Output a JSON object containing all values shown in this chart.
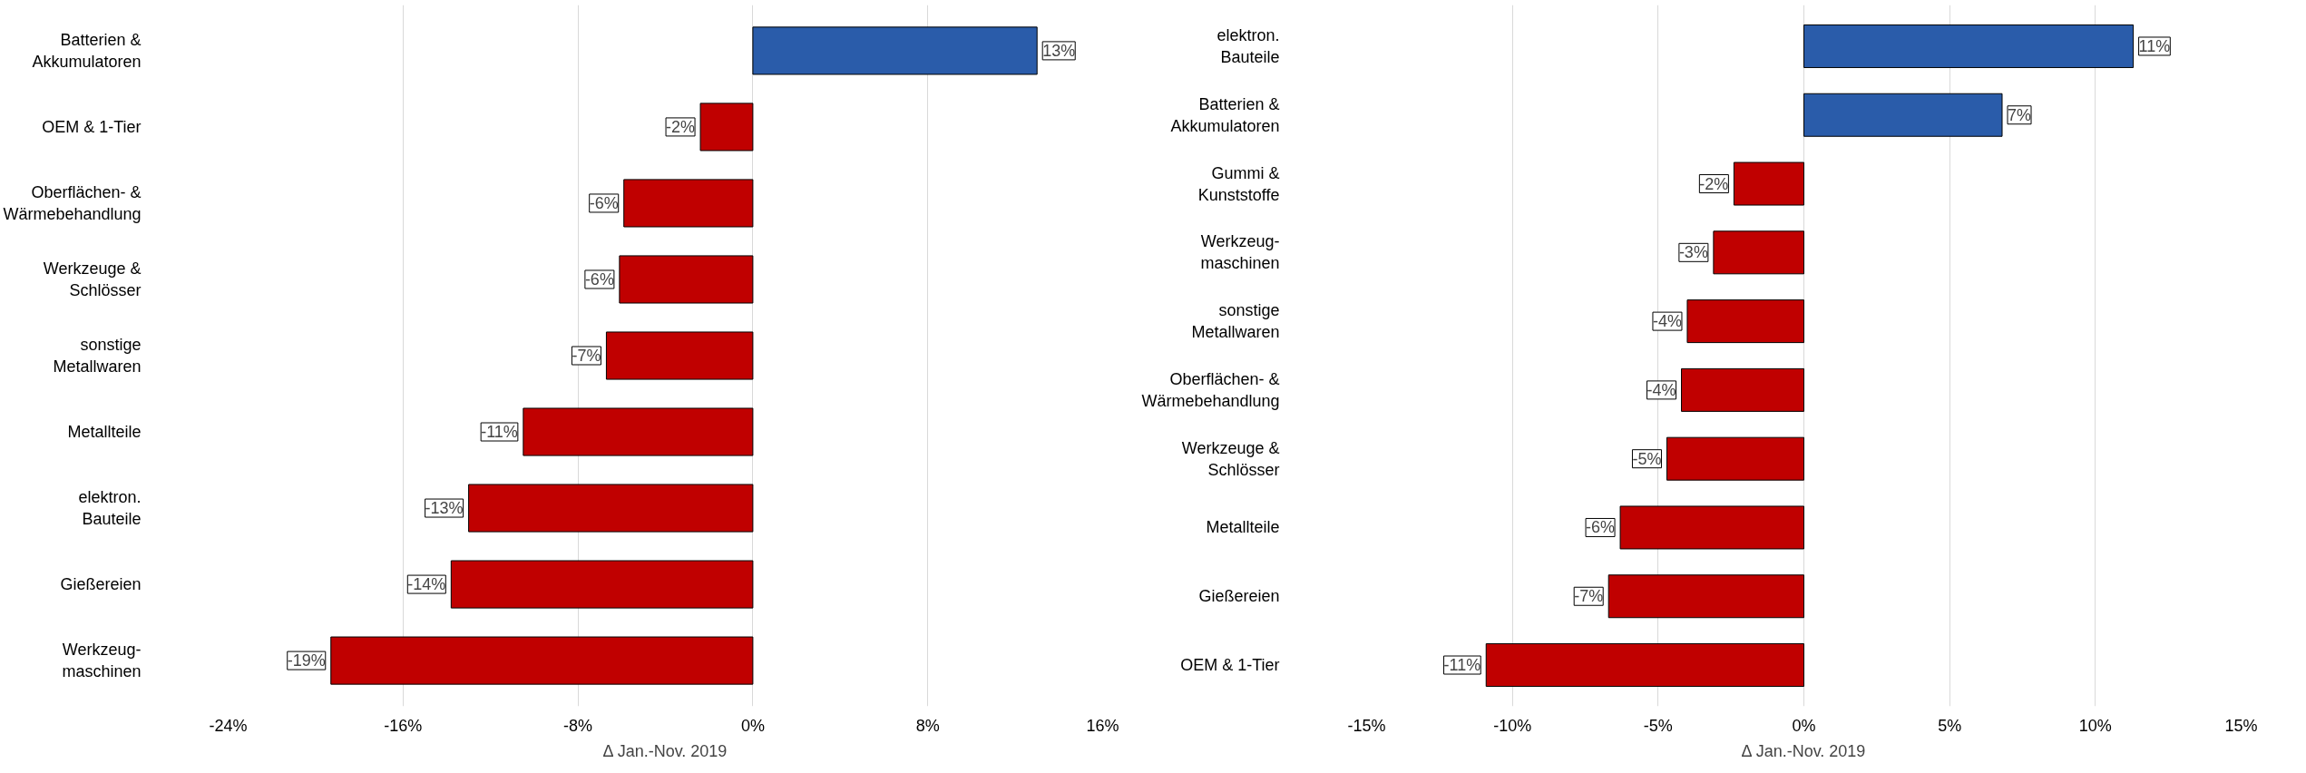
{
  "chart_data": [
    {
      "type": "bar",
      "orientation": "horizontal",
      "xlabel": "Δ Jan.-Nov. 2019",
      "categories": [
        "Batterien &\nAkkumulatoren",
        "OEM & 1-Tier",
        "Oberflächen- &\nWärmebehandlung",
        "Werkzeuge &\nSchlösser",
        "sonstige\nMetallwaren",
        "Metallteile",
        "elektron.\nBauteile",
        "Gießereien",
        "Werkzeug-\nmaschinen"
      ],
      "values": [
        13.0,
        -2.4,
        -5.9,
        -6.1,
        -6.7,
        -10.5,
        -13.0,
        -13.8,
        -19.3
      ],
      "colors": [
        "#2a5caa",
        "#c00000",
        "#c00000",
        "#c00000",
        "#c00000",
        "#c00000",
        "#c00000",
        "#c00000",
        "#c00000"
      ],
      "value_labels": [
        "13%",
        "-2%",
        "-6%",
        "-6%",
        "-7%",
        "-11%",
        "-13%",
        "-14%",
        "-19%"
      ],
      "xlim": [
        -24,
        16
      ],
      "xticks": [
        {
          "value": -24,
          "label": "-24%"
        },
        {
          "value": -16,
          "label": "-16%"
        },
        {
          "value": -8,
          "label": "-8%"
        },
        {
          "value": 0,
          "label": "0%"
        },
        {
          "value": 8,
          "label": "8%"
        },
        {
          "value": 16,
          "label": "16%"
        }
      ],
      "grid": "x"
    },
    {
      "type": "bar",
      "orientation": "horizontal",
      "xlabel": "Δ Jan.-Nov. 2019",
      "categories": [
        "elektron.\nBauteile",
        "Batterien &\nAkkumulatoren",
        "Gummi &\nKunststoffe",
        "Werkzeug-\nmaschinen",
        "sonstige\nMetallwaren",
        "Oberflächen- &\nWärmebehandlung",
        "Werkzeuge &\nSchlösser",
        "Metallteile",
        "Gießereien",
        "OEM & 1-Tier"
      ],
      "values": [
        11.3,
        6.8,
        -2.4,
        -3.1,
        -4.0,
        -4.2,
        -4.7,
        -6.3,
        -6.7,
        -10.9
      ],
      "colors": [
        "#2a5caa",
        "#2a5caa",
        "#c00000",
        "#c00000",
        "#c00000",
        "#c00000",
        "#c00000",
        "#c00000",
        "#c00000",
        "#c00000"
      ],
      "value_labels": [
        "11%",
        "7%",
        "-2%",
        "-3%",
        "-4%",
        "-4%",
        "-5%",
        "-6%",
        "-7%",
        "-11%"
      ],
      "xlim": [
        -15,
        15
      ],
      "xticks": [
        {
          "value": -15,
          "label": "-15%"
        },
        {
          "value": -10,
          "label": "-10%"
        },
        {
          "value": -5,
          "label": "-5%"
        },
        {
          "value": 0,
          "label": "0%"
        },
        {
          "value": 5,
          "label": "5%"
        },
        {
          "value": 10,
          "label": "10%"
        },
        {
          "value": 15,
          "label": "15%"
        }
      ],
      "grid": "x"
    }
  ]
}
